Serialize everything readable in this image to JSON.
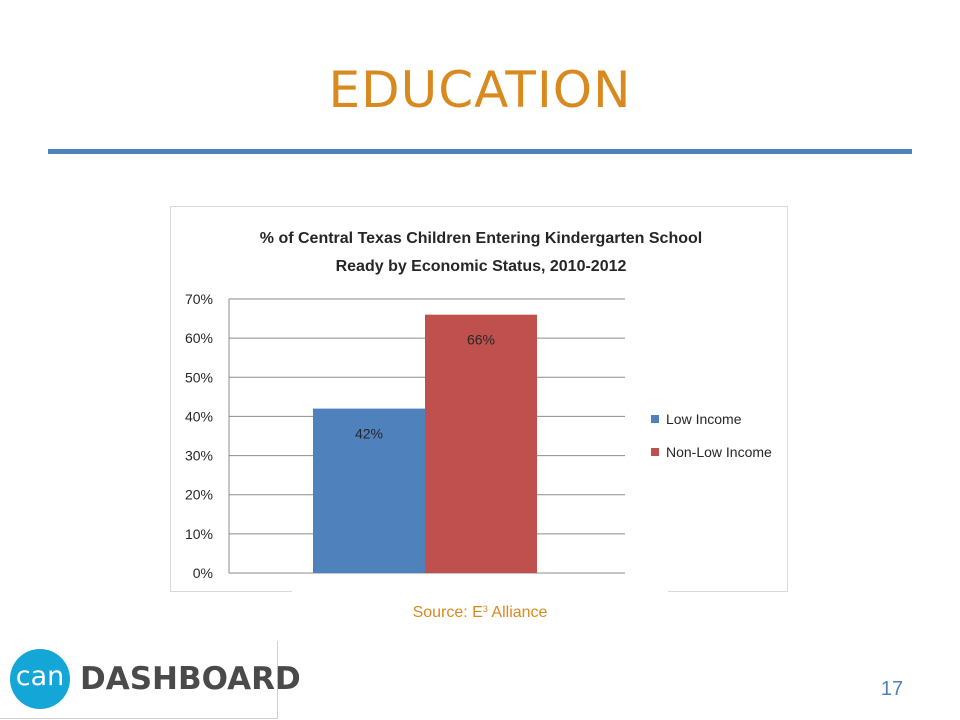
{
  "slide": {
    "title": "EDUCATION",
    "source_prefix": "Source:  E",
    "source_sup": "3",
    "source_suffix": " Alliance",
    "page_number": "17"
  },
  "logo": {
    "circle_text": "can",
    "text": "DASHBOARD",
    "circle_color": "#13a6d6"
  },
  "colors": {
    "title": "#d98a1f",
    "rule": "#4f81bd"
  },
  "chart_data": {
    "type": "bar",
    "title_lines": [
      "% of Central Texas Children Entering Kindergarten School",
      "Ready by Economic Status, 2010-2012"
    ],
    "categories": [
      ""
    ],
    "series": [
      {
        "name": "Low Income",
        "values": [
          42
        ],
        "label": "42%",
        "color": "#4f81bd"
      },
      {
        "name": "Non-Low Income",
        "values": [
          66
        ],
        "label": "66%",
        "color": "#c0504d"
      }
    ],
    "ylim": [
      0,
      70
    ],
    "y_ticks": [
      {
        "value": 70,
        "label": "70%"
      },
      {
        "value": 60,
        "label": "60%"
      },
      {
        "value": 50,
        "label": "50%"
      },
      {
        "value": 40,
        "label": "40%"
      },
      {
        "value": 30,
        "label": "30%"
      },
      {
        "value": 20,
        "label": "20%"
      },
      {
        "value": 10,
        "label": "10%"
      },
      {
        "value": 0,
        "label": "0%"
      }
    ],
    "grid": true,
    "legend_position": "right"
  }
}
